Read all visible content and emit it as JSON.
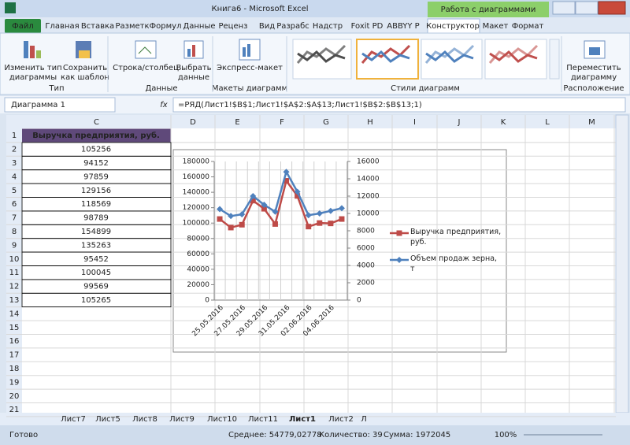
{
  "title_bar": {
    "title": "Книга6 - Microsoft Excel",
    "context": "Работа с диаграммами"
  },
  "tabs": [
    "Файл",
    "Главная",
    "Вставка",
    "Разметк",
    "Формул",
    "Данные",
    "Реценз",
    "Вид",
    "Разрабс",
    "Надстр",
    "Foxit PD",
    "ABBYY P",
    "Конструктор",
    "Макет",
    "Формат"
  ],
  "ribbon": {
    "buttons": [
      [
        "Изменить тип",
        "диаграммы"
      ],
      [
        "Сохранить",
        "как шаблон"
      ],
      [
        "Строка/столбец"
      ],
      [
        "Выбрать",
        "данные"
      ],
      [
        "Экспресс-макет"
      ],
      [
        "Переместить",
        "диаграмму"
      ]
    ],
    "groups": [
      "Тип",
      "Данные",
      "Макеты диаграмм",
      "Стили диаграмм",
      "Расположение"
    ]
  },
  "formula_bar": {
    "name_box": "Диаграмма 1",
    "fx": "fx",
    "formula": "=РЯД(Лист1!$B$1;Лист1!$A$2:$A$13;Лист1!$B$2:$B$13;1)"
  },
  "sheet": {
    "columns": [
      "C",
      "D",
      "E",
      "F",
      "G",
      "H",
      "I",
      "J",
      "K",
      "L",
      "M"
    ],
    "rows": [
      1,
      2,
      3,
      4,
      5,
      6,
      7,
      8,
      9,
      10,
      11,
      12,
      13,
      14,
      15,
      16,
      17,
      18,
      19,
      20,
      21
    ]
  },
  "sheet_tabs": [
    "Лист7",
    "Лист5",
    "Лист8",
    "Лист9",
    "Лист10",
    "Лист11",
    "Лист1",
    "Лист2",
    "Л"
  ],
  "status_bar": {
    "ready": "Готово",
    "average": "Среднее: 54779,02778",
    "count": "Количество: 39",
    "sum": "Сумма: 1972045",
    "zoom": "100%"
  },
  "chart_data": {
    "type": "line",
    "categories": [
      "25.05.2016",
      null,
      "27.05.2016",
      null,
      "29.05.2016",
      null,
      "31.05.2016",
      null,
      "02.06.2016",
      null,
      "04.06.2016",
      null
    ],
    "series": [
      {
        "name": "Выручка предприятия, руб.",
        "color": "#be4b48",
        "values": [
          105256,
          94152,
          97859,
          129156,
          118569,
          98789,
          154899,
          135263,
          95452,
          100045,
          99569,
          105265
        ]
      },
      {
        "name": "Объем продаж зерна, т",
        "color": "#4f81bd",
        "axis": "y2",
        "values": [
          10500,
          9700,
          9900,
          12000,
          11000,
          10200,
          14800,
          12500,
          9800,
          10000,
          10300,
          10600
        ]
      }
    ],
    "ylim": [
      0,
      180000
    ],
    "yticks": [
      0,
      20000,
      40000,
      60000,
      80000,
      100000,
      120000,
      140000,
      160000,
      180000
    ],
    "y2lim": [
      0,
      16000
    ],
    "y2ticks": [
      0,
      2000,
      4000,
      6000,
      8000,
      10000,
      12000,
      14000,
      16000
    ],
    "xgrid": true,
    "legend": "right"
  }
}
